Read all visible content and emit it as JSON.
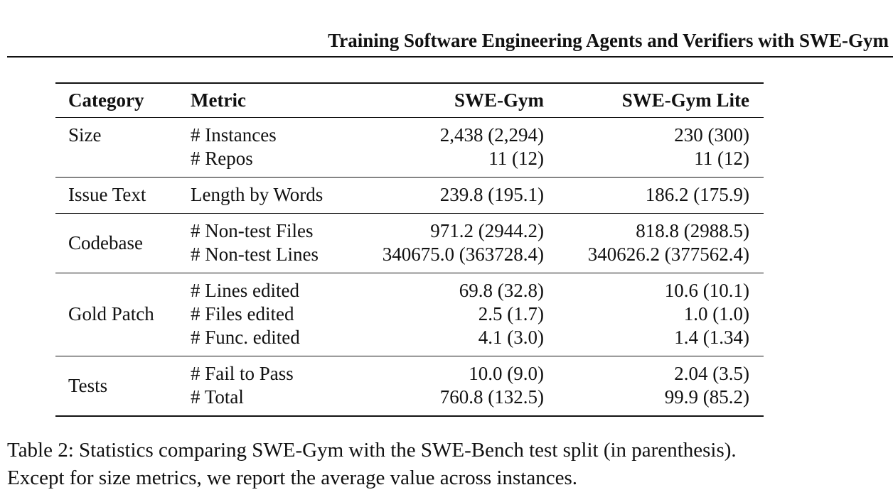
{
  "running_head": "Training Software Engineering Agents and Verifiers with SWE-Gym",
  "table": {
    "headers": [
      "Category",
      "Metric",
      "SWE-Gym",
      "SWE-Gym Lite"
    ],
    "groups": [
      {
        "category": "Size",
        "metrics": [
          "# Instances",
          "# Repos"
        ],
        "swe_gym": [
          "2,438 (2,294)",
          "11 (12)"
        ],
        "swe_gym_lite": [
          "230 (300)",
          "11 (12)"
        ]
      },
      {
        "category": "Issue Text",
        "metrics": [
          "Length by Words"
        ],
        "swe_gym": [
          "239.8 (195.1)"
        ],
        "swe_gym_lite": [
          "186.2 (175.9)"
        ]
      },
      {
        "category": "Codebase",
        "metrics": [
          "# Non-test Files",
          "# Non-test Lines"
        ],
        "swe_gym": [
          "971.2 (2944.2)",
          "340675.0 (363728.4)"
        ],
        "swe_gym_lite": [
          "818.8 (2988.5)",
          "340626.2 (377562.4)"
        ]
      },
      {
        "category": "Gold Patch",
        "metrics": [
          "# Lines edited",
          "# Files edited",
          "# Func. edited"
        ],
        "swe_gym": [
          "69.8 (32.8)",
          "2.5 (1.7)",
          "4.1 (3.0)"
        ],
        "swe_gym_lite": [
          "10.6 (10.1)",
          "1.0 (1.0)",
          "1.4 (1.34)"
        ]
      },
      {
        "category": "Tests",
        "metrics": [
          "# Fail to Pass",
          "# Total"
        ],
        "swe_gym": [
          "10.0 (9.0)",
          "760.8 (132.5)"
        ],
        "swe_gym_lite": [
          "2.04 (3.5)",
          "99.9 (85.2)"
        ]
      }
    ]
  },
  "caption": {
    "line1": "Table 2: Statistics comparing SWE-Gym with the SWE-Bench test split (in parenthesis).",
    "line2": "Except for size metrics, we report the average value across instances."
  }
}
